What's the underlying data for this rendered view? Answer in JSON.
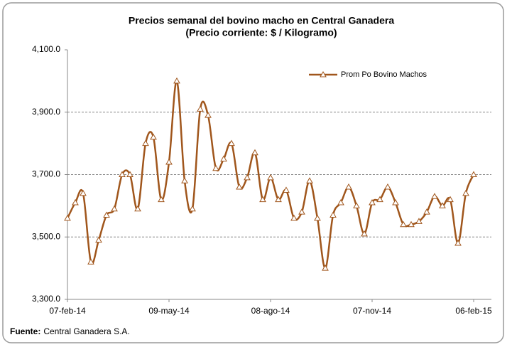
{
  "chart_data": {
    "type": "line",
    "title": "Precios semanal del bovino  macho en Central Ganadera",
    "subtitle": "(Precio corriente: $ / Kilogramo)",
    "categories": [
      "07-feb-14",
      null,
      null,
      null,
      null,
      null,
      null,
      null,
      null,
      null,
      null,
      null,
      null,
      "09-may-14",
      null,
      null,
      null,
      null,
      null,
      null,
      null,
      null,
      null,
      null,
      null,
      null,
      "08-ago-14",
      null,
      null,
      null,
      null,
      null,
      null,
      null,
      null,
      null,
      null,
      null,
      null,
      "07-nov-14",
      null,
      null,
      null,
      null,
      null,
      null,
      null,
      null,
      null,
      null,
      null,
      null,
      "06-feb-15"
    ],
    "series": [
      {
        "name": "Prom Po Bovino Machos",
        "color": "#a0561c",
        "values": [
          3560,
          3610,
          3640,
          3420,
          3490,
          3570,
          3590,
          3700,
          3700,
          3590,
          3800,
          3820,
          3620,
          3740,
          4000,
          3680,
          3590,
          3910,
          3890,
          3720,
          3750,
          3800,
          3660,
          3690,
          3770,
          3620,
          3690,
          3620,
          3650,
          3560,
          3580,
          3680,
          3560,
          3400,
          3570,
          3610,
          3660,
          3600,
          3510,
          3610,
          3620,
          3660,
          3610,
          3540,
          3540,
          3550,
          3580,
          3630,
          3600,
          3620,
          3480,
          3640,
          3700
        ]
      }
    ],
    "ylim": [
      3300,
      4100
    ],
    "yticks": [
      {
        "value": 3300,
        "label": "3,300.0"
      },
      {
        "value": 3500,
        "label": "3,500.0"
      },
      {
        "value": 3700,
        "label": "3,700.0"
      },
      {
        "value": 3900,
        "label": "3,900.0"
      },
      {
        "value": 4100,
        "label": "4,100.0"
      }
    ],
    "grid": true,
    "legend": "top-right",
    "source_label": "Fuente:",
    "source": "Central Ganadera S.A."
  }
}
